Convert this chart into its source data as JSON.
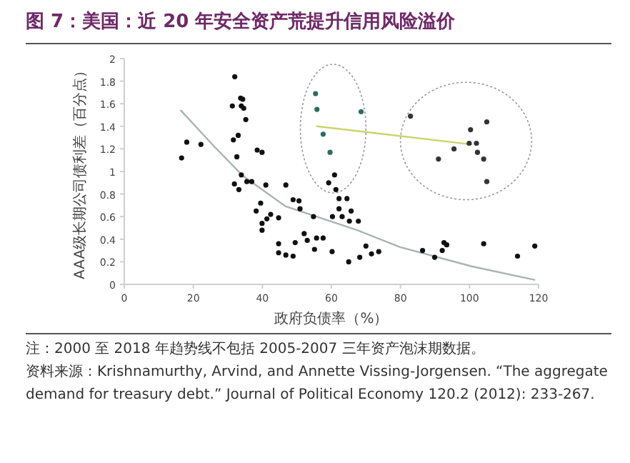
{
  "chart_data": {
    "type": "scatter",
    "title": "图 7：美国：近 20 年安全资产荒提升信用风险溢价",
    "xlabel": "政府负债率（%）",
    "ylabel": "AAA级长期公司债利差（百分点）",
    "xlim": [
      0,
      120
    ],
    "xticks": [
      0,
      20,
      40,
      60,
      80,
      100,
      120
    ],
    "ylim": [
      0,
      2
    ],
    "yticks": [
      0,
      0.2,
      0.4,
      0.6,
      0.8,
      1,
      1.2,
      1.4,
      1.6,
      1.8,
      2
    ],
    "grid": false,
    "annotations": [
      "注：2000 至 2018 年趋势线不包括 2005-2007 三年资产泡沫期数据。",
      "资料来源：Krishnamurthy, Arvind, and Annette Vissing-Jorgensen. “The aggregate demand for treasury debt.” Journal of Political Economy 120.2 (2012): 233-267."
    ],
    "series": [
      {
        "marker": "circle",
        "color": "#111111",
        "x": [
          16.6,
          18.1,
          22.2,
          32.0,
          33.7,
          34.3,
          31.3,
          33.9,
          34.6,
          35.2,
          33.0,
          31.6,
          32.6,
          33.9,
          31.9,
          33.2,
          35.5,
          38.2,
          38.5,
          39.9,
          36.9,
          41.0,
          46.8,
          39.5,
          42.4,
          41.3,
          39.9,
          39.9,
          44.7,
          48.9,
          50.6,
          50.9,
          54.8,
          52.1,
          55.7,
          57.6,
          44.7,
          49.5,
          53.0,
          44.7,
          46.8,
          48.9,
          55.1,
          60.2,
          65.0,
          68.2,
          71.6,
          73.7,
          70.0,
          59.2,
          61.3,
          62.2,
          64.5,
          62.2,
          65.7,
          60.3,
          63.1,
          65.2,
          67.8,
          60.9,
          92.1,
          86.4,
          89.9,
          92.6,
          93.4,
          104.1,
          113.9,
          118.9
        ],
        "values": [
          1.12,
          1.26,
          1.24,
          1.84,
          1.65,
          1.64,
          1.58,
          1.58,
          1.56,
          1.46,
          1.32,
          1.28,
          1.13,
          0.97,
          0.89,
          0.84,
          0.91,
          0.65,
          1.19,
          1.17,
          0.91,
          0.88,
          0.88,
          0.72,
          0.62,
          0.58,
          0.54,
          0.48,
          0.59,
          0.75,
          0.74,
          0.67,
          0.6,
          0.45,
          0.41,
          0.41,
          0.36,
          0.37,
          0.39,
          0.28,
          0.26,
          0.25,
          0.31,
          0.29,
          0.2,
          0.24,
          0.27,
          0.29,
          0.34,
          0.9,
          0.84,
          0.76,
          0.76,
          0.67,
          0.65,
          0.6,
          0.6,
          0.56,
          0.56,
          0.97,
          0.3,
          0.3,
          0.24,
          0.37,
          0.35,
          0.36,
          0.25,
          0.34
        ]
      },
      {
        "marker": "circle",
        "color": "#2e6b5e",
        "x": [
          55.4,
          55.8,
          68.6,
          57.6,
          59.6
        ],
        "values": [
          1.69,
          1.55,
          1.53,
          1.33,
          1.17
        ]
      },
      {
        "marker": "circle",
        "color": "#333333",
        "x": [
          82.9,
          91.0,
          105.0,
          100.3,
          99.9,
          102.0,
          95.5,
          102.3,
          104.1,
          105.0
        ],
        "values": [
          1.49,
          1.11,
          1.44,
          1.37,
          1.25,
          1.25,
          1.2,
          1.17,
          1.11,
          0.91
        ]
      },
      {
        "type": "line",
        "color": "#a9b3b3",
        "x": [
          16.4,
          26.1,
          34.4,
          46.8,
          67.5,
          79.9,
          100.6,
          118.8
        ],
        "values": [
          1.54,
          1.22,
          0.96,
          0.69,
          0.48,
          0.33,
          0.16,
          0.04
        ]
      },
      {
        "type": "line",
        "color": "#c9d56a",
        "x": [
          55.8,
          100.6
        ],
        "values": [
          1.4,
          1.24
        ]
      }
    ]
  }
}
